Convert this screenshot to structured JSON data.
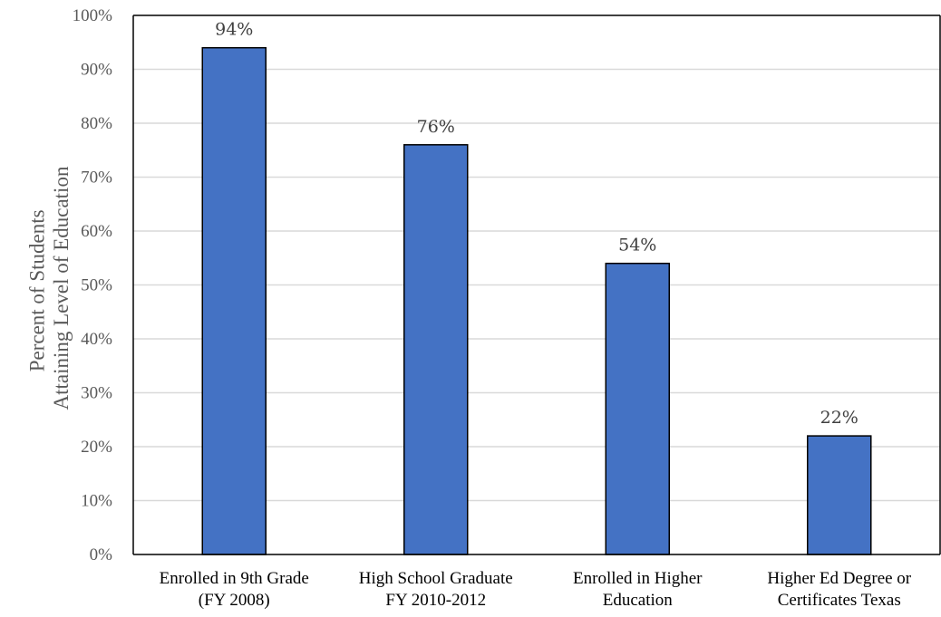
{
  "chart_data": {
    "type": "bar",
    "categories": [
      [
        "Enrolled in 9th Grade",
        "(FY 2008)"
      ],
      [
        "High School Graduate",
        "FY 2010-2012"
      ],
      [
        "Enrolled in Higher",
        "Education"
      ],
      [
        "Higher Ed Degree or",
        "Certificates Texas"
      ]
    ],
    "values": [
      94,
      76,
      54,
      22
    ],
    "data_labels": [
      "94%",
      "76%",
      "54%",
      "22%"
    ],
    "ylabel": [
      "Percent of Students",
      "Attaining Level of Education"
    ],
    "yticks": [
      "0%",
      "10%",
      "20%",
      "30%",
      "40%",
      "50%",
      "60%",
      "70%",
      "80%",
      "90%",
      "100%"
    ],
    "ylim": [
      0,
      100
    ],
    "grid": true,
    "colors": {
      "bar": "#4472C4",
      "bar_border": "#000000",
      "grid": "#D9D9D9",
      "axis": "#000000"
    }
  }
}
